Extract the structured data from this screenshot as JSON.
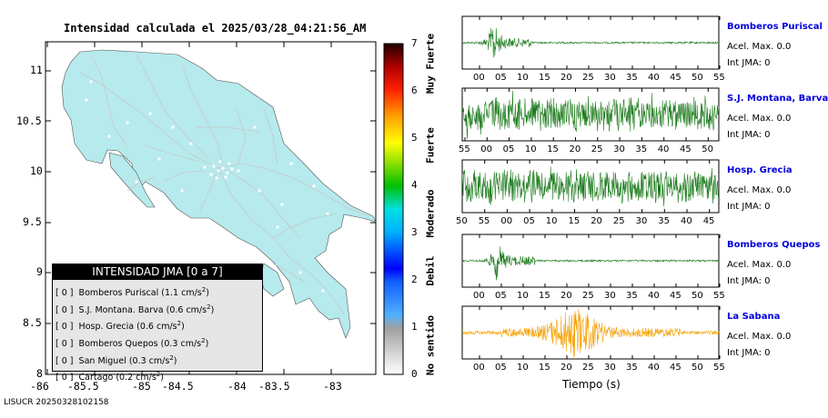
{
  "title": "Intensidad calculada el 2025/03/28_04:21:56_AM",
  "footer": "LISUCR 20250328102158",
  "map": {
    "x_ticks": [
      "-86",
      "-85.5",
      "-85",
      "-84.5",
      "-84",
      "-83.5",
      "-83"
    ],
    "y_ticks": [
      "11",
      "10.5",
      "10",
      "9.5",
      "9",
      "8.5",
      "8"
    ],
    "land_color": "#b6eaed",
    "roads_color": "#c8c8c8"
  },
  "legend": {
    "header": "INTENSIDAD JMA [0 a 7]",
    "entries": [
      {
        "level": "[ 0 ]",
        "station": "Bomberos Puriscal",
        "value": "(1.1 cm/s",
        "exp": "2",
        ")": ")"
      },
      {
        "level": "[ 0 ]",
        "station": "S.J. Montana. Barva",
        "value": "(0.6 cm/s",
        "exp": "2"
      },
      {
        "level": "[ 0 ]",
        "station": "Hosp. Grecia",
        "value": "(0.6 cm/s",
        "exp": "2"
      },
      {
        "level": "[ 0 ]",
        "station": "Bomberos Quepos",
        "value": "(0.3 cm/s",
        "exp": "2"
      },
      {
        "level": "[ 0 ]",
        "station": "San Miguel",
        "value": "(0.3 cm/s",
        "exp": "2"
      },
      {
        "level": "[ 0 ]",
        "station": "Cartago",
        "value": "(0.2 cm/s",
        "exp": "2"
      }
    ]
  },
  "colorbar": {
    "ticks": [
      "7",
      "6",
      "5",
      "4",
      "3",
      "2",
      "1",
      "0"
    ],
    "labels": [
      "Muy Fuerte",
      "Fuerte",
      "Moderado",
      "Debil",
      "No sentido"
    ]
  },
  "stations": [
    {
      "name": "Bomberos Puriscal",
      "accel": "Acel. Max. 0.0",
      "jma": "Int JMA: 0",
      "ticks": [
        "00",
        "05",
        "10",
        "15",
        "20",
        "25",
        "30",
        "35",
        "40",
        "45",
        "50",
        "55"
      ],
      "color": "#1a7a1a",
      "kind": "spike",
      "spike_pos": 0.12
    },
    {
      "name": "S.J. Montana, Barva",
      "accel": "Acel. Max. 0.0",
      "jma": "Int JMA: 0",
      "ticks": [
        "55",
        "00",
        "05",
        "10",
        "15",
        "20",
        "25",
        "30",
        "35",
        "40",
        "45",
        "50"
      ],
      "color": "#1a7a1a",
      "kind": "noise"
    },
    {
      "name": "Hosp. Grecia",
      "accel": "Acel. Max. 0.0",
      "jma": "Int JMA: 0",
      "ticks": [
        "50",
        "55",
        "00",
        "05",
        "10",
        "15",
        "20",
        "25",
        "30",
        "35",
        "40",
        "45"
      ],
      "color": "#1a7a1a",
      "kind": "noise"
    },
    {
      "name": "Bomberos Quepos",
      "accel": "Acel. Max. 0.0",
      "jma": "Int JMA: 0",
      "ticks": [
        "00",
        "05",
        "10",
        "15",
        "20",
        "25",
        "30",
        "35",
        "40",
        "45",
        "50",
        "55"
      ],
      "color": "#1a7a1a",
      "kind": "spike",
      "spike_pos": 0.135
    },
    {
      "name": "La Sabana",
      "accel": "Acel. Max. 0.0",
      "jma": "Int JMA: 0",
      "ticks": [
        "00",
        "05",
        "10",
        "15",
        "20",
        "25",
        "30",
        "35",
        "40",
        "45",
        "50",
        "55"
      ],
      "color": "#f5a000",
      "kind": "burst"
    }
  ],
  "xlabel": "Tiempo (s)"
}
